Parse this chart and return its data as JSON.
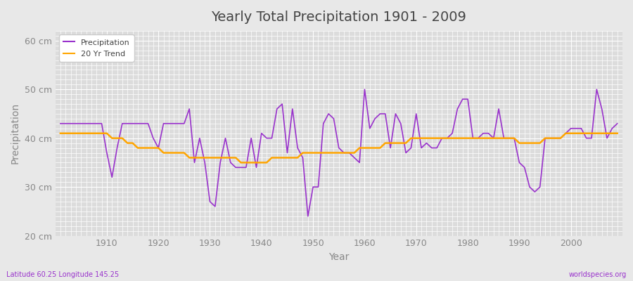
{
  "title": "Yearly Total Precipitation 1901 - 2009",
  "xlabel": "Year",
  "ylabel": "Precipitation",
  "subtitle_left": "Latitude 60.25 Longitude 145.25",
  "subtitle_right": "worldspecies.org",
  "ylim": [
    20,
    62
  ],
  "yticks": [
    20,
    30,
    40,
    50,
    60
  ],
  "ytick_labels": [
    "20 cm",
    "30 cm",
    "40 cm",
    "50 cm",
    "60 cm"
  ],
  "xlim": [
    1900,
    2010
  ],
  "xticks": [
    1910,
    1920,
    1930,
    1940,
    1950,
    1960,
    1970,
    1980,
    1990,
    2000
  ],
  "precip_color": "#9932CC",
  "trend_color": "#FFA500",
  "bg_color": "#E8E8E8",
  "plot_bg_color": "#DCDCDC",
  "grid_color": "#FFFFFF",
  "years": [
    1901,
    1902,
    1903,
    1904,
    1905,
    1906,
    1907,
    1908,
    1909,
    1910,
    1911,
    1912,
    1913,
    1914,
    1915,
    1916,
    1917,
    1918,
    1919,
    1920,
    1921,
    1922,
    1923,
    1924,
    1925,
    1926,
    1927,
    1928,
    1929,
    1930,
    1931,
    1932,
    1933,
    1934,
    1935,
    1936,
    1937,
    1938,
    1939,
    1940,
    1941,
    1942,
    1943,
    1944,
    1945,
    1946,
    1947,
    1948,
    1949,
    1950,
    1951,
    1952,
    1953,
    1954,
    1955,
    1956,
    1957,
    1958,
    1959,
    1960,
    1961,
    1962,
    1963,
    1964,
    1965,
    1966,
    1967,
    1968,
    1969,
    1970,
    1971,
    1972,
    1973,
    1974,
    1975,
    1976,
    1977,
    1978,
    1979,
    1980,
    1981,
    1982,
    1983,
    1984,
    1985,
    1986,
    1987,
    1988,
    1989,
    1990,
    1991,
    1992,
    1993,
    1994,
    1995,
    1996,
    1997,
    1998,
    1999,
    2000,
    2001,
    2002,
    2003,
    2004,
    2005,
    2006,
    2007,
    2008,
    2009
  ],
  "precip": [
    43,
    43,
    43,
    43,
    43,
    43,
    43,
    43,
    43,
    37,
    32,
    38,
    43,
    43,
    43,
    43,
    43,
    43,
    40,
    38,
    43,
    43,
    43,
    43,
    43,
    46,
    35,
    40,
    35,
    27,
    26,
    35,
    40,
    35,
    34,
    34,
    34,
    40,
    34,
    41,
    40,
    40,
    46,
    47,
    37,
    46,
    38,
    36,
    24,
    30,
    30,
    43,
    45,
    44,
    38,
    37,
    37,
    36,
    35,
    50,
    42,
    44,
    45,
    45,
    38,
    45,
    43,
    37,
    38,
    45,
    38,
    39,
    38,
    38,
    40,
    40,
    41,
    46,
    48,
    48,
    40,
    40,
    41,
    41,
    40,
    46,
    40,
    40,
    40,
    35,
    34,
    30,
    29,
    30,
    40,
    40,
    40,
    40,
    41,
    42,
    42,
    42,
    40,
    40,
    50,
    46,
    40,
    42,
    43
  ],
  "trend": [
    41,
    41,
    41,
    41,
    41,
    41,
    41,
    41,
    41,
    41,
    40,
    40,
    40,
    39,
    39,
    38,
    38,
    38,
    38,
    38,
    37,
    37,
    37,
    37,
    37,
    36,
    36,
    36,
    36,
    36,
    36,
    36,
    36,
    36,
    36,
    35,
    35,
    35,
    35,
    35,
    35,
    36,
    36,
    36,
    36,
    36,
    36,
    37,
    37,
    37,
    37,
    37,
    37,
    37,
    37,
    37,
    37,
    37,
    38,
    38,
    38,
    38,
    38,
    39,
    39,
    39,
    39,
    39,
    40,
    40,
    40,
    40,
    40,
    40,
    40,
    40,
    40,
    40,
    40,
    40,
    40,
    40,
    40,
    40,
    40,
    40,
    40,
    40,
    40,
    39,
    39,
    39,
    39,
    39,
    40,
    40,
    40,
    40,
    41,
    41,
    41,
    41,
    41,
    41,
    41,
    41,
    41,
    41,
    41
  ]
}
